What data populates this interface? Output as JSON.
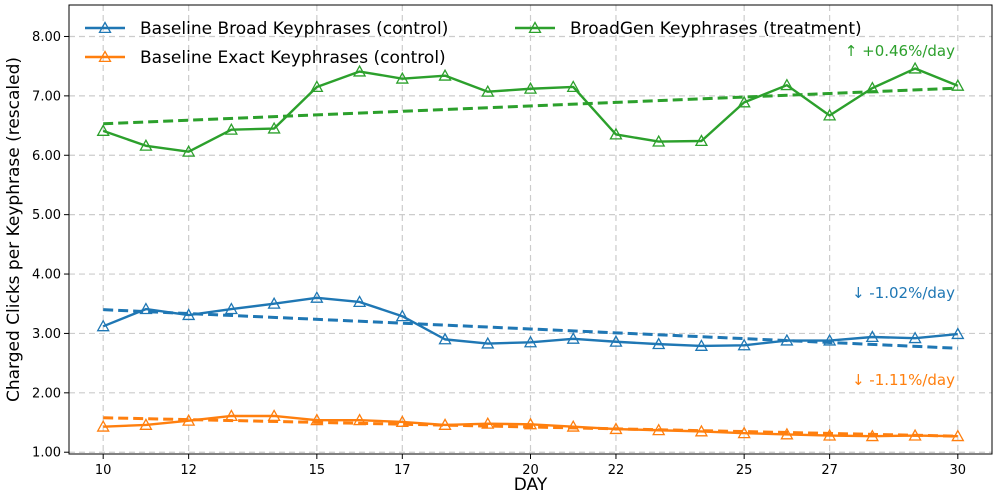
{
  "chart_data": {
    "type": "line",
    "title": "",
    "xlabel": "DAY",
    "ylabel": "Charged Clicks per Keyphrase (rescaled)",
    "xlim": [
      9.2,
      30.8
    ],
    "ylim": [
      0.97,
      8.53
    ],
    "grid": true,
    "legend_position": "top-left",
    "x": [
      10,
      11,
      12,
      13,
      14,
      15,
      16,
      17,
      18,
      19,
      20,
      21,
      22,
      23,
      24,
      25,
      26,
      27,
      28,
      29,
      30
    ],
    "x_ticks": [
      10,
      12,
      15,
      17,
      20,
      22,
      25,
      27,
      30
    ],
    "x_tick_labels": [
      "10",
      "12",
      "15",
      "17",
      "20",
      "22",
      "25",
      "27",
      "30"
    ],
    "y_ticks": [
      1,
      2,
      3,
      4,
      5,
      6,
      7,
      8
    ],
    "y_tick_labels": [
      "1.00",
      "2.00",
      "3.00",
      "4.00",
      "5.00",
      "6.00",
      "7.00",
      "8.00"
    ],
    "series": [
      {
        "name": "Baseline Broad Keyphrases (control)",
        "color": "#1f77b4",
        "values": [
          3.12,
          3.41,
          3.31,
          3.41,
          3.5,
          3.6,
          3.53,
          3.29,
          2.9,
          2.83,
          2.85,
          2.91,
          2.86,
          2.82,
          2.79,
          2.8,
          2.88,
          2.88,
          2.94,
          2.92,
          2.99
        ],
        "trend": [
          3.4,
          2.75
        ],
        "annotation": "↓ -1.02%/day"
      },
      {
        "name": "Baseline Exact Keyphrases (control)",
        "color": "#ff7f0e",
        "values": [
          1.43,
          1.46,
          1.53,
          1.61,
          1.61,
          1.54,
          1.54,
          1.51,
          1.46,
          1.48,
          1.47,
          1.43,
          1.39,
          1.37,
          1.35,
          1.32,
          1.3,
          1.28,
          1.27,
          1.28,
          1.27
        ],
        "trend": [
          1.58,
          1.27
        ],
        "annotation": "↓ -1.11%/day"
      },
      {
        "name": "BroadGen Keyphrases (treatment)",
        "color": "#2ca02c",
        "values": [
          6.41,
          6.16,
          6.06,
          6.43,
          6.45,
          7.15,
          7.41,
          7.29,
          7.34,
          7.07,
          7.12,
          7.15,
          6.35,
          6.23,
          6.24,
          6.89,
          7.18,
          6.67,
          7.13,
          7.46,
          7.17
        ],
        "trend": [
          6.53,
          7.13
        ],
        "annotation": "↑ +0.46%/day"
      }
    ],
    "legend_order": [
      0,
      2,
      1
    ]
  }
}
